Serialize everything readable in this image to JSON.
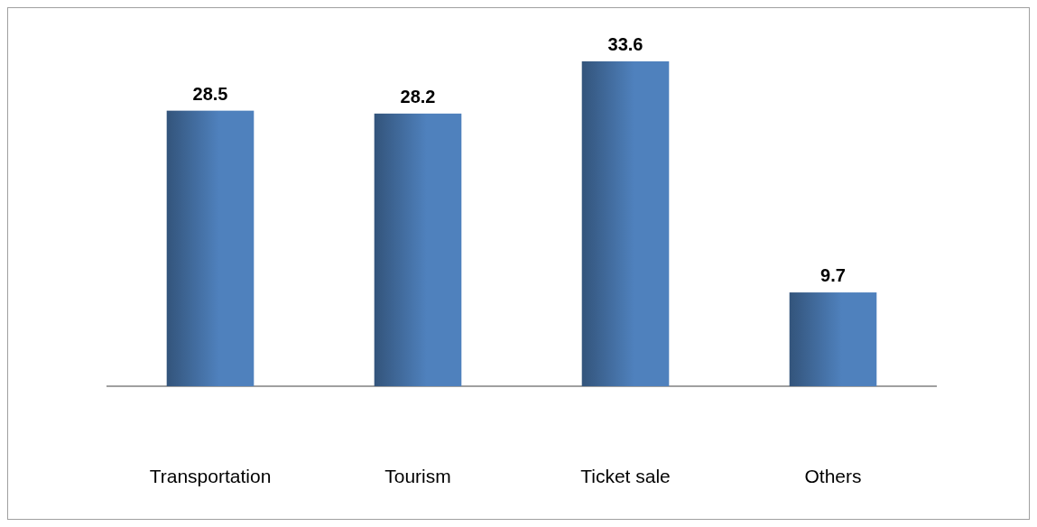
{
  "chart_data": {
    "type": "bar",
    "categories": [
      "Transportation",
      "Tourism",
      "Ticket sale",
      "Others"
    ],
    "values": [
      28.5,
      28.2,
      33.6,
      9.7
    ],
    "color": "#4f81bd",
    "data_labels": true
  }
}
